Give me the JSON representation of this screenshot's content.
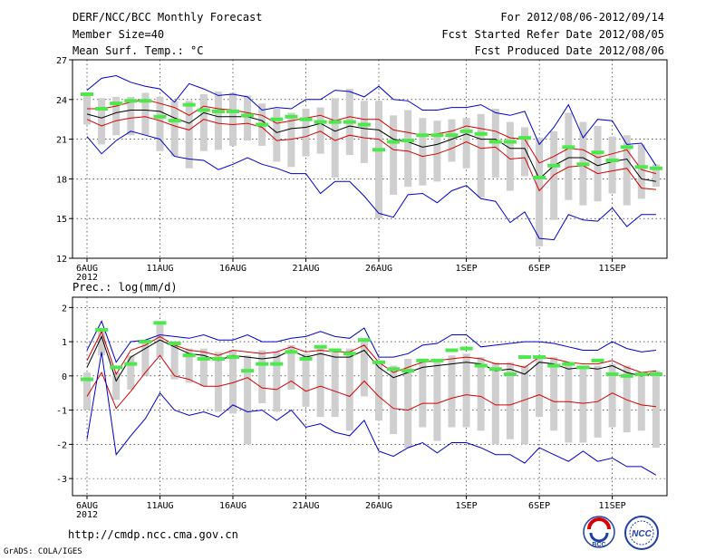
{
  "header": {
    "title": "DERF/NCC/BCC Monthly Forecast",
    "member_size": "Member Size=40",
    "variable": "Mean Surf. Temp.: °C",
    "period": "For 2012/08/06-2012/09/14",
    "start_date": "Fcst Started Refer Date 2012/08/05",
    "produced_date": "Fcst Produced Date 2012/08/06"
  },
  "footer": {
    "url": "http://cmdp.ncc.cma.gov.cn",
    "credit": "GrADS: COLA/IGES",
    "logo_bcc": "BCC",
    "logo_ncc": "NCC"
  },
  "chart_data": [
    {
      "type": "box-line",
      "title": "Mean Surf. Temp.: °C",
      "ylim": [
        12,
        27
      ],
      "yticks": [
        12,
        15,
        18,
        21,
        24,
        27
      ],
      "x": [
        0,
        1,
        2,
        3,
        4,
        5,
        6,
        7,
        8,
        9,
        10,
        11,
        12,
        13,
        14,
        15,
        16,
        17,
        18,
        19,
        20,
        21,
        22,
        23,
        24,
        25,
        26,
        27,
        28,
        29,
        30,
        31,
        32,
        33,
        34,
        35,
        36,
        37,
        38,
        39
      ],
      "xticks": [
        {
          "index": 0,
          "label": "6AUG",
          "sublabel": "2012"
        },
        {
          "index": 5,
          "label": "11AUG"
        },
        {
          "index": 10,
          "label": "16AUG"
        },
        {
          "index": 15,
          "label": "21AUG"
        },
        {
          "index": 20,
          "label": "26AUG"
        },
        {
          "index": 26,
          "label": "1SEP"
        },
        {
          "index": 31,
          "label": "6SEP"
        },
        {
          "index": 36,
          "label": "11SEP"
        }
      ],
      "series": [
        {
          "name": "ensemble_mean",
          "color": "#000000",
          "values": [
            22.9,
            22.6,
            23.0,
            23.2,
            23.2,
            23.1,
            22.6,
            22.2,
            23.0,
            22.7,
            22.7,
            22.7,
            22.4,
            21.5,
            21.8,
            21.9,
            22.2,
            21.6,
            22.0,
            21.8,
            21.7,
            21.0,
            20.8,
            20.4,
            20.6,
            21.0,
            21.4,
            21.0,
            21.0,
            20.3,
            20.3,
            18.0,
            19.0,
            19.6,
            19.6,
            19.0,
            19.3,
            19.5,
            18.0,
            17.8
          ]
        },
        {
          "name": "upper_spread",
          "color": "#d40000",
          "values": [
            23.3,
            23.3,
            23.5,
            23.8,
            24.0,
            23.7,
            23.4,
            22.8,
            23.5,
            23.3,
            23.2,
            23.0,
            22.8,
            22.2,
            22.4,
            22.6,
            22.8,
            22.4,
            22.7,
            22.5,
            22.5,
            21.7,
            21.5,
            21.3,
            21.4,
            21.6,
            22.0,
            21.8,
            21.6,
            21.1,
            21.0,
            19.2,
            19.7,
            20.3,
            20.2,
            19.6,
            19.9,
            20.2,
            18.7,
            18.4
          ]
        },
        {
          "name": "lower_spread",
          "color": "#d40000",
          "values": [
            22.5,
            22.0,
            22.4,
            22.6,
            22.7,
            22.4,
            22.0,
            21.7,
            22.5,
            22.2,
            22.1,
            22.2,
            21.9,
            20.9,
            21.0,
            21.2,
            21.6,
            20.9,
            21.3,
            21.1,
            21.0,
            20.2,
            20.1,
            19.7,
            19.9,
            20.3,
            20.8,
            20.3,
            20.4,
            19.5,
            19.6,
            17.1,
            18.3,
            18.9,
            19.0,
            18.4,
            18.6,
            18.8,
            17.3,
            17.2
          ]
        },
        {
          "name": "member_max",
          "color": "#0000c8",
          "values": [
            24.7,
            25.6,
            25.8,
            25.3,
            25.0,
            24.8,
            23.8,
            25.2,
            24.8,
            24.3,
            24.4,
            24.2,
            23.2,
            23.4,
            23.3,
            24.0,
            24.0,
            24.7,
            24.6,
            24.2,
            25.0,
            24.0,
            23.9,
            23.2,
            23.2,
            23.4,
            23.4,
            23.6,
            23.0,
            22.8,
            23.1,
            20.6,
            21.9,
            23.6,
            21.1,
            22.5,
            22.4,
            20.6,
            20.7,
            19.0
          ]
        },
        {
          "name": "member_min",
          "color": "#0000c8",
          "values": [
            21.2,
            19.9,
            20.9,
            21.6,
            21.3,
            21.0,
            19.7,
            19.5,
            19.4,
            18.7,
            19.1,
            19.6,
            19.1,
            18.8,
            18.4,
            18.4,
            16.9,
            17.8,
            17.8,
            16.7,
            15.4,
            15.1,
            16.8,
            16.9,
            16.2,
            17.1,
            17.5,
            16.5,
            16.3,
            14.7,
            15.5,
            13.5,
            13.4,
            15.3,
            14.9,
            14.8,
            15.8,
            14.4,
            15.3,
            15.3
          ]
        },
        {
          "name": "observed",
          "color": "#4ce84c",
          "values": [
            24.4,
            23.3,
            23.7,
            23.9,
            23.9,
            22.7,
            22.4,
            23.6,
            23.2,
            23.1,
            23.1,
            22.8,
            22.1,
            22.5,
            22.7,
            22.5,
            22.3,
            22.3,
            22.3,
            22.1,
            20.2,
            20.8,
            20.9,
            21.3,
            21.3,
            21.3,
            21.6,
            21.4,
            20.8,
            20.8,
            21.1,
            18.1,
            19.0,
            20.4,
            19.1,
            20.0,
            19.4,
            20.4,
            18.9,
            18.8
          ]
        }
      ],
      "boxes": {
        "high": [
          24.4,
          24.1,
          24.2,
          24.2,
          24.5,
          24.2,
          23.9,
          23.9,
          24.4,
          24.6,
          24.5,
          24.3,
          23.7,
          23.3,
          23.0,
          23.3,
          23.4,
          24.1,
          24.8,
          23.9,
          23.9,
          22.8,
          23.2,
          22.6,
          22.4,
          22.5,
          22.6,
          22.9,
          23.3,
          22.3,
          21.9,
          21.1,
          21.6,
          23.0,
          22.3,
          22.0,
          21.2,
          21.3,
          20.6,
          19.1
        ],
        "low": [
          22.1,
          20.6,
          21.3,
          21.3,
          21.3,
          20.1,
          19.7,
          18.8,
          20.1,
          20.2,
          20.5,
          20.9,
          20.5,
          19.3,
          18.9,
          19.7,
          19.9,
          18.1,
          19.8,
          19.2,
          15.0,
          16.8,
          17.4,
          17.5,
          17.8,
          19.3,
          18.8,
          16.6,
          18.1,
          17.1,
          18.2,
          12.9,
          14.9,
          16.4,
          16.0,
          16.3,
          16.9,
          16.0,
          16.5,
          17.4
        ]
      }
    },
    {
      "type": "box-line",
      "title": "Prec.: log(mm/d)",
      "ylim": [
        -3.5,
        2.3
      ],
      "yticks": [
        -3,
        -2,
        -1,
        0,
        1,
        2
      ],
      "x": [
        0,
        1,
        2,
        3,
        4,
        5,
        6,
        7,
        8,
        9,
        10,
        11,
        12,
        13,
        14,
        15,
        16,
        17,
        18,
        19,
        20,
        21,
        22,
        23,
        24,
        25,
        26,
        27,
        28,
        29,
        30,
        31,
        32,
        33,
        34,
        35,
        36,
        37,
        38,
        39
      ],
      "xticks": [
        {
          "index": 0,
          "label": "6AUG",
          "sublabel": "2012"
        },
        {
          "index": 5,
          "label": "11AUG"
        },
        {
          "index": 10,
          "label": "16AUG"
        },
        {
          "index": 15,
          "label": "21AUG"
        },
        {
          "index": 20,
          "label": "26AUG"
        },
        {
          "index": 26,
          "label": "1SEP"
        },
        {
          "index": 31,
          "label": "6SEP"
        },
        {
          "index": 36,
          "label": "11SEP"
        }
      ],
      "series": [
        {
          "name": "ensemble_mean",
          "color": "#000000",
          "values": [
            0.25,
            1.15,
            -0.15,
            0.55,
            0.8,
            1.05,
            0.85,
            0.65,
            0.6,
            0.45,
            0.6,
            0.55,
            0.5,
            0.55,
            0.75,
            0.55,
            0.65,
            0.55,
            0.55,
            0.75,
            0.25,
            -0.05,
            0.1,
            0.25,
            0.3,
            0.35,
            0.4,
            0.35,
            0.15,
            0.2,
            0.05,
            0.4,
            0.35,
            0.2,
            0.25,
            0.2,
            0.3,
            0.1,
            0.0,
            0.1
          ]
        },
        {
          "name": "upper_spread",
          "color": "#d40000",
          "values": [
            0.45,
            1.3,
            0.05,
            0.75,
            0.9,
            1.15,
            0.9,
            0.75,
            0.7,
            0.6,
            0.75,
            0.7,
            0.65,
            0.7,
            0.85,
            0.7,
            0.75,
            0.7,
            0.7,
            0.9,
            0.4,
            0.1,
            0.25,
            0.4,
            0.45,
            0.5,
            0.55,
            0.5,
            0.35,
            0.35,
            0.25,
            0.55,
            0.5,
            0.4,
            0.35,
            0.35,
            0.45,
            0.25,
            0.1,
            0.15
          ]
        },
        {
          "name": "lower_spread",
          "color": "#d40000",
          "values": [
            -0.6,
            0.1,
            -0.95,
            -0.45,
            0.1,
            0.6,
            0.0,
            -0.1,
            -0.3,
            -0.3,
            -0.2,
            -0.05,
            -0.35,
            -0.4,
            -0.15,
            -0.45,
            -0.3,
            -0.45,
            -0.6,
            -0.15,
            -0.6,
            -0.95,
            -1.0,
            -0.8,
            -0.8,
            -0.65,
            -0.55,
            -0.6,
            -0.85,
            -0.85,
            -0.7,
            -0.55,
            -0.75,
            -0.75,
            -0.8,
            -0.75,
            -0.5,
            -0.7,
            -0.85,
            -0.9
          ]
        },
        {
          "name": "member_max",
          "color": "#0000c8",
          "values": [
            0.75,
            1.6,
            0.4,
            1.0,
            1.05,
            1.2,
            1.15,
            1.1,
            1.2,
            1.05,
            1.05,
            1.2,
            1.0,
            1.0,
            1.1,
            1.15,
            1.3,
            1.15,
            1.1,
            1.4,
            0.55,
            0.55,
            0.65,
            0.9,
            0.95,
            1.2,
            1.2,
            0.85,
            0.9,
            0.95,
            1.0,
            1.0,
            0.95,
            0.85,
            0.75,
            0.75,
            1.0,
            0.8,
            0.7,
            0.75
          ]
        },
        {
          "name": "member_min",
          "color": "#0000c8",
          "values": [
            -1.85,
            0.7,
            -2.3,
            -1.75,
            -1.25,
            -0.5,
            -1.0,
            -1.15,
            -1.05,
            -1.2,
            -0.85,
            -1.05,
            -1.0,
            -1.3,
            -1.0,
            -1.5,
            -1.4,
            -1.65,
            -1.75,
            -1.3,
            -2.2,
            -2.35,
            -2.1,
            -1.95,
            -2.25,
            -1.95,
            -1.95,
            -2.1,
            -2.3,
            -2.3,
            -2.55,
            -2.1,
            -2.3,
            -2.5,
            -2.2,
            -2.5,
            -2.4,
            -2.65,
            -2.65,
            -2.9
          ]
        },
        {
          "name": "observed",
          "color": "#4ce84c",
          "values": [
            -0.1,
            1.35,
            0.25,
            0.35,
            1.0,
            1.55,
            0.95,
            0.6,
            0.5,
            0.5,
            0.55,
            0.15,
            0.35,
            0.35,
            0.7,
            0.5,
            0.85,
            0.75,
            0.65,
            1.05,
            0.4,
            0.2,
            0.15,
            0.45,
            0.45,
            0.75,
            0.8,
            0.3,
            0.2,
            0.05,
            0.55,
            0.55,
            0.3,
            0.35,
            0.25,
            0.45,
            0.05,
            0.0,
            0.05,
            0.05
          ]
        }
      ],
      "boxes": {
        "high": [
          0.1,
          1.3,
          0.1,
          0.6,
          1.0,
          1.5,
          1.0,
          0.8,
          0.8,
          0.7,
          0.75,
          0.6,
          0.75,
          0.7,
          0.9,
          0.65,
          0.8,
          0.8,
          0.8,
          1.05,
          0.45,
          0.3,
          0.5,
          0.5,
          0.5,
          0.6,
          0.65,
          0.55,
          0.4,
          0.4,
          0.3,
          0.55,
          0.55,
          0.4,
          0.3,
          0.3,
          0.35,
          0.3,
          0.1,
          0.15
        ],
        "low": [
          -1.0,
          0.6,
          -0.7,
          -0.4,
          0.0,
          0.55,
          -0.1,
          -0.2,
          -0.3,
          -1.05,
          -1.1,
          -2.0,
          -0.8,
          -1.05,
          -0.4,
          -0.9,
          -1.2,
          -1.2,
          -1.6,
          -0.6,
          -1.3,
          -1.7,
          -2.1,
          -1.5,
          -1.9,
          -1.5,
          -1.5,
          -1.6,
          -2.0,
          -1.85,
          -2.0,
          -1.2,
          -1.6,
          -1.95,
          -1.95,
          -1.8,
          -1.5,
          -1.65,
          -1.6,
          -2.1
        ]
      }
    }
  ]
}
